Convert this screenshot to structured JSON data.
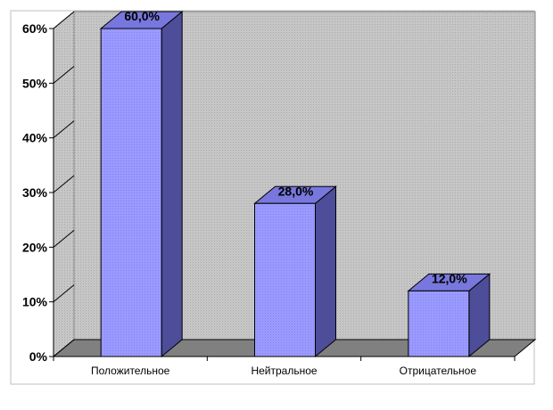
{
  "chart_data": {
    "type": "bar",
    "categories": [
      "Положительное",
      "Нейтральное",
      "Отрицательное"
    ],
    "values": [
      60,
      28,
      12
    ],
    "data_labels": [
      "60,0%",
      "28,0%",
      "12,0%"
    ],
    "ylim": [
      0,
      60
    ],
    "yticks": [
      0,
      10,
      20,
      30,
      40,
      50,
      60
    ],
    "ytick_labels": [
      "0%",
      "10%",
      "20%",
      "30%",
      "40%",
      "50%",
      "60%"
    ],
    "style": "3d-column",
    "grid": false,
    "legend": "none",
    "colors": {
      "bar_front": "#9999ff",
      "bar_top": "#7777dd",
      "bar_side": "#4d4d99",
      "floor": "#808080",
      "plot_background": "#c0c0c0",
      "chart_background": "#ffffff",
      "border": "#000000"
    }
  }
}
